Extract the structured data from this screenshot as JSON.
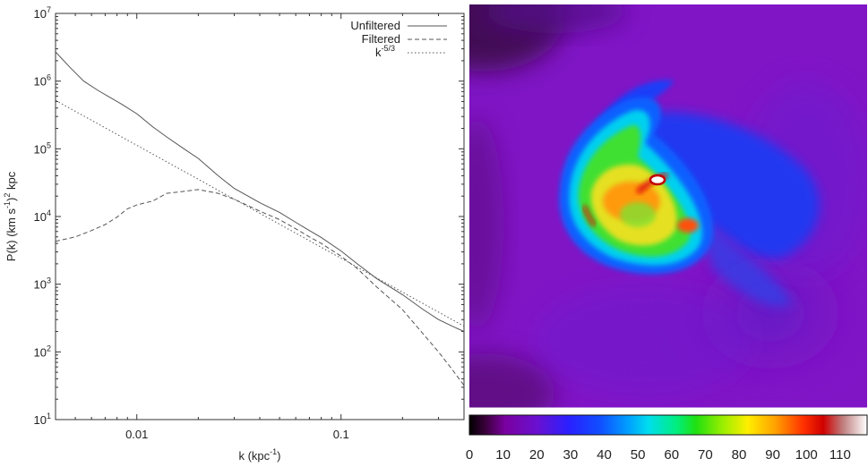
{
  "chart_data": [
    {
      "type": "line",
      "title": "",
      "xlabel": "k (kpc",
      "xlabel_sup": "-1",
      "xlabel_end": ")",
      "ylabel_parts": [
        "P(k) (km s",
        "-1",
        ")",
        "2",
        " kpc"
      ],
      "xscale": "log",
      "yscale": "log",
      "xlim": [
        0.004,
        0.4
      ],
      "ylim": [
        10,
        10000000
      ],
      "x_ticks": [
        {
          "v": 0.01,
          "label": "0.01"
        },
        {
          "v": 0.1,
          "label": "0.1"
        }
      ],
      "y_ticks": [
        {
          "v": 10,
          "base": "10",
          "exp": "1"
        },
        {
          "v": 100,
          "base": "10",
          "exp": "2"
        },
        {
          "v": 1000,
          "base": "10",
          "exp": "3"
        },
        {
          "v": 10000,
          "base": "10",
          "exp": "4"
        },
        {
          "v": 100000,
          "base": "10",
          "exp": "5"
        },
        {
          "v": 1000000,
          "base": "10",
          "exp": "6"
        },
        {
          "v": 10000000,
          "base": "10",
          "exp": "7"
        }
      ],
      "grid": false,
      "legend_position": "top-right",
      "series": [
        {
          "name": "Unfiltered",
          "style": "solid",
          "x": [
            0.004,
            0.0047,
            0.0055,
            0.0065,
            0.0075,
            0.0085,
            0.01,
            0.012,
            0.014,
            0.017,
            0.02,
            0.025,
            0.03,
            0.04,
            0.05,
            0.06,
            0.07,
            0.08,
            0.1,
            0.12,
            0.15,
            0.2,
            0.25,
            0.3,
            0.35,
            0.4
          ],
          "y": [
            2700000,
            1600000,
            1000000,
            720000,
            560000,
            450000,
            330000,
            210000,
            150000,
            100000,
            72000,
            40000,
            26000,
            16000,
            11500,
            8200,
            6200,
            4900,
            3100,
            2000,
            1200,
            700,
            430,
            300,
            240,
            200
          ]
        },
        {
          "name": "Filtered",
          "style": "dashed",
          "x": [
            0.004,
            0.005,
            0.006,
            0.007,
            0.008,
            0.009,
            0.01,
            0.012,
            0.014,
            0.016,
            0.02,
            0.025,
            0.03,
            0.04,
            0.05,
            0.06,
            0.07,
            0.08,
            0.1,
            0.12,
            0.15,
            0.2,
            0.25,
            0.3,
            0.35,
            0.4
          ],
          "y": [
            4300,
            5000,
            6200,
            7600,
            9800,
            13000,
            14800,
            17000,
            22000,
            23000,
            25000,
            22000,
            18000,
            12000,
            9000,
            6600,
            5000,
            4000,
            2600,
            1700,
            900,
            420,
            190,
            100,
            55,
            32
          ]
        },
        {
          "name": "k-5/3",
          "name_base": "k",
          "name_sup": "-5/3",
          "style": "dotted",
          "x": [
            0.004,
            0.4
          ],
          "y": [
            520000,
            240
          ]
        }
      ]
    },
    {
      "type": "heatmap",
      "colorbar": {
        "ticks": [
          "0",
          "10",
          "20",
          "30",
          "40",
          "50",
          "60",
          "70",
          "80",
          "90",
          "100",
          "110"
        ],
        "range": [
          0,
          118
        ]
      }
    }
  ]
}
